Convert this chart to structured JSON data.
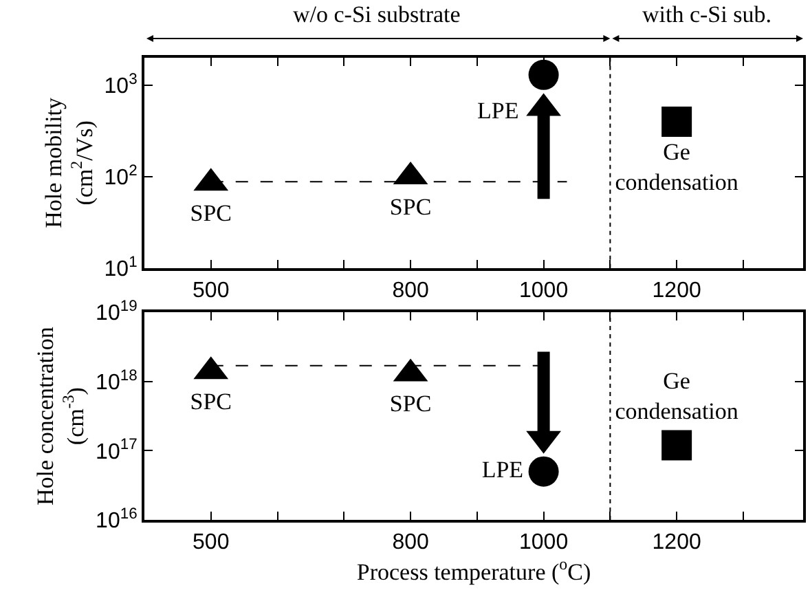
{
  "chart_data": [
    {
      "type": "scatter",
      "ylabel": "Hole mobility\n(cm$^{2}$/Vs)",
      "log": "y",
      "legend": false,
      "annotations": [
        "w/o c-Si substrate",
        "with c-Si sub."
      ],
      "series": [
        {
          "name": "SPC",
          "x": [
            500
          ],
          "values": [
            85
          ],
          "color": "#000000",
          "marker": "triangle"
        },
        {
          "name": "SPC",
          "x": [
            800
          ],
          "values": [
            100
          ],
          "color": "#000000",
          "marker": "triangle"
        },
        {
          "name": "LPE",
          "x": [
            1000
          ],
          "values": [
            1300
          ],
          "color": "#000000",
          "marker": "circle"
        },
        {
          "name": "Ge\ncondensation",
          "x": [
            1200
          ],
          "values": [
            400
          ],
          "color": "#000000",
          "marker": "square"
        },
        {
          "type": "line",
          "x": [
            500,
            1035
          ],
          "values": [
            88,
            88
          ],
          "color": "#000000",
          "line_style": "dashed",
          "marker": "none"
        },
        {
          "type": "line",
          "x": [
            1000,
            1000
          ],
          "values": [
            57,
            560
          ],
          "color": "#000000",
          "line_style": "solid",
          "marker": "triangle"
        }
      ],
      "ref_lines": [
        {
          "axis": "x",
          "value": 1100,
          "line_style": "dotted"
        }
      ],
      "xlim": [
        400,
        1390
      ],
      "xticks": [
        500,
        {
          "value": 600,
          "label": null
        },
        {
          "value": 700,
          "label": null
        },
        800,
        {
          "value": 900,
          "label": null
        },
        1000,
        {
          "value": 1100,
          "label": null
        },
        1200,
        {
          "value": 1300,
          "label": null
        }
      ],
      "ylim": [
        10,
        2000
      ],
      "yticks": [
        {
          "value": 10,
          "label": "10$^{1}$"
        },
        {
          "value": 100,
          "label": "10$^{2}$"
        },
        {
          "value": 1000,
          "label": "10$^{3}$"
        }
      ]
    },
    {
      "type": "scatter",
      "xlabel": "Process temperature ($^{o}$C)",
      "ylabel": "Hole concentration\n(cm$^{-3}$)",
      "log": "y",
      "legend": false,
      "series": [
        {
          "name": "SPC",
          "x": [
            500
          ],
          "values": [
            1.4e+18
          ],
          "color": "#000000",
          "marker": "triangle"
        },
        {
          "name": "SPC",
          "x": [
            800
          ],
          "values": [
            1.3e+18
          ],
          "color": "#000000",
          "marker": "triangle"
        },
        {
          "name": "LPE",
          "x": [
            1000
          ],
          "values": [
            5e+16
          ],
          "color": "#000000",
          "marker": "circle"
        },
        {
          "name": "Ge\ncondensation",
          "x": [
            1200
          ],
          "values": [
            1.2e+17
          ],
          "color": "#000000",
          "marker": "square"
        },
        {
          "type": "line",
          "x": [
            500,
            1010
          ],
          "values": [
            1.7e+18,
            1.7e+18
          ],
          "color": "#000000",
          "line_style": "dashed",
          "marker": "none"
        },
        {
          "type": "line",
          "x": [
            1000,
            1000
          ],
          "values": [
            2.7e+18,
            1.5e+17
          ],
          "color": "#000000",
          "line_style": "solid",
          "marker": "triangle"
        }
      ],
      "ref_lines": [
        {
          "axis": "x",
          "value": 1100,
          "line_style": "dotted"
        }
      ],
      "xlim": [
        400,
        1390
      ],
      "xticks": [
        500,
        {
          "value": 600,
          "label": null
        },
        {
          "value": 700,
          "label": null
        },
        800,
        {
          "value": 900,
          "label": null
        },
        1000,
        {
          "value": 1100,
          "label": null
        },
        1200,
        {
          "value": 1300,
          "label": null
        }
      ],
      "ylim": [
        1e+16,
        1e+19
      ],
      "yticks": [
        {
          "value": 1e+16,
          "label": "10$^{16}$"
        },
        {
          "value": 1e+17,
          "label": "10$^{17}$"
        },
        {
          "value": 1e+18,
          "label": "10$^{18}$"
        },
        {
          "value": 1e+19,
          "label": "10$^{19}$"
        }
      ]
    }
  ]
}
